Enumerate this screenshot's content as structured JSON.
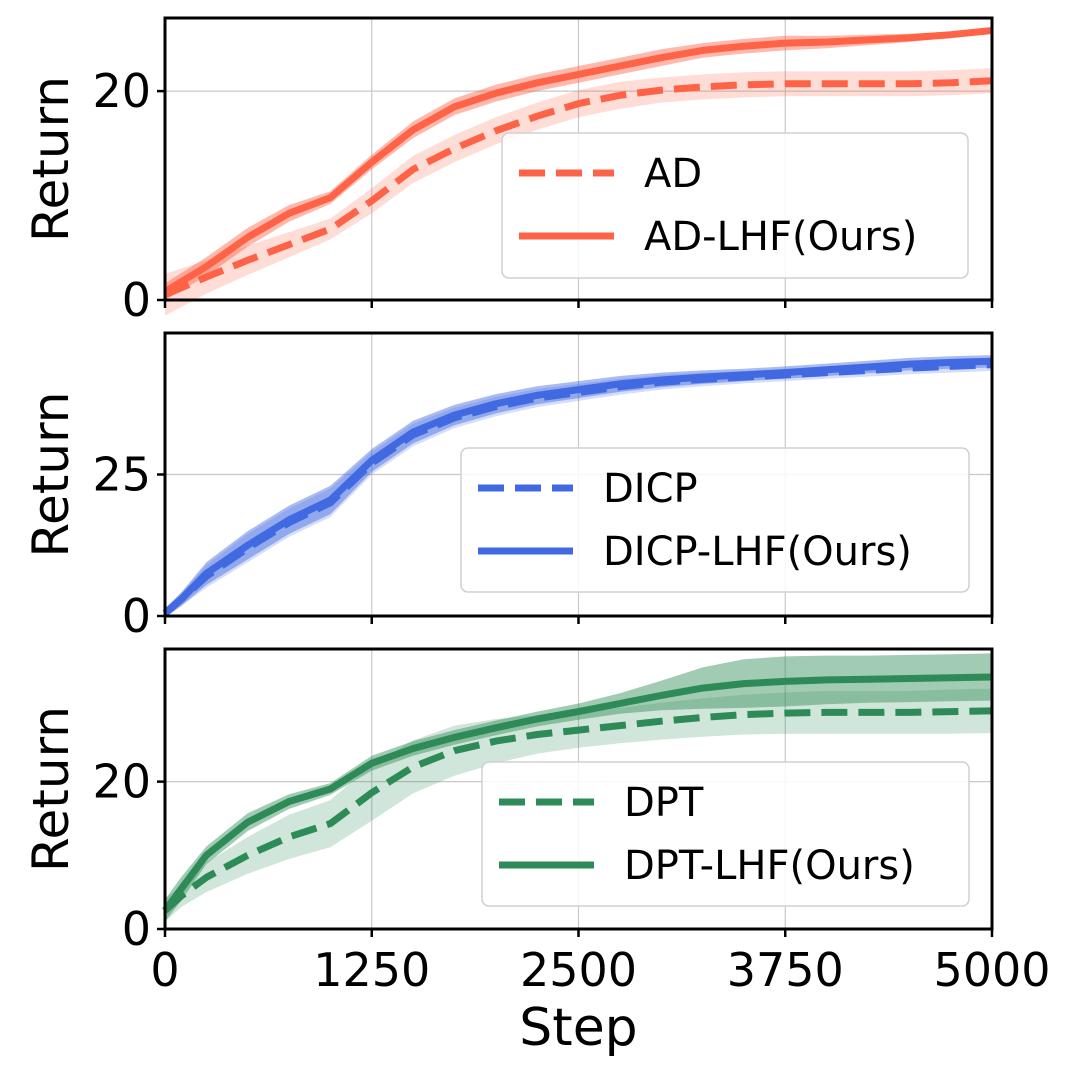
{
  "figure": {
    "xlabel": "Step",
    "ylabel": "Return"
  },
  "chart_data": [
    {
      "type": "line",
      "title": "",
      "xlabel": "",
      "ylabel": "Return",
      "xlim": [
        0,
        5000
      ],
      "ylim": [
        0,
        27
      ],
      "xticks": [
        0,
        1250,
        2500,
        3750,
        5000
      ],
      "xtick_labels": [
        "0",
        "1250",
        "2500",
        "3750",
        "5000"
      ],
      "yticks": [
        0,
        20
      ],
      "ytick_labels": [
        "0",
        "20"
      ],
      "grid": true,
      "legend_position": "lower-right",
      "color": "#ff6347",
      "x": [
        0,
        250,
        500,
        750,
        1000,
        1250,
        1500,
        1750,
        2000,
        2250,
        2500,
        2750,
        3000,
        3250,
        3500,
        3750,
        4000,
        4250,
        4500,
        4750,
        5000
      ],
      "series": [
        {
          "name": "AD",
          "style": "dashed",
          "values": [
            0.5,
            2.2,
            3.8,
            5.3,
            6.8,
            9.5,
            12.5,
            14.5,
            16.2,
            17.6,
            18.8,
            19.6,
            20.1,
            20.4,
            20.6,
            20.7,
            20.7,
            20.7,
            20.7,
            20.8,
            21.0
          ],
          "band": [
            2.0,
            1.6,
            1.4,
            1.2,
            1.0,
            1.2,
            1.3,
            1.3,
            1.3,
            1.3,
            1.3,
            1.3,
            1.2,
            1.2,
            1.2,
            1.2,
            1.2,
            1.2,
            1.2,
            1.2,
            1.2
          ]
        },
        {
          "name": "AD-LHF(Ours)",
          "style": "solid",
          "values": [
            0.8,
            3.2,
            6.0,
            8.3,
            9.8,
            13.2,
            16.3,
            18.5,
            19.8,
            20.8,
            21.6,
            22.4,
            23.2,
            23.9,
            24.3,
            24.6,
            24.7,
            24.9,
            25.1,
            25.4,
            25.8
          ],
          "band": [
            0.8,
            0.9,
            0.9,
            0.8,
            0.6,
            0.7,
            0.8,
            0.8,
            0.8,
            0.8,
            0.8,
            0.8,
            0.8,
            0.7,
            0.7,
            0.7,
            0.6,
            0.5,
            0.4,
            0.3,
            0.3
          ]
        }
      ]
    },
    {
      "type": "line",
      "title": "",
      "xlabel": "",
      "ylabel": "Return",
      "xlim": [
        0,
        5000
      ],
      "ylim": [
        0,
        50
      ],
      "xticks": [
        0,
        1250,
        2500,
        3750,
        5000
      ],
      "xtick_labels": [
        "0",
        "1250",
        "2500",
        "3750",
        "5000"
      ],
      "yticks": [
        0,
        25
      ],
      "ytick_labels": [
        "0",
        "25"
      ],
      "grid": true,
      "legend_position": "lower-right",
      "color": "#4169e1",
      "x": [
        0,
        100,
        250,
        500,
        750,
        1000,
        1250,
        1500,
        1750,
        2000,
        2250,
        2500,
        2750,
        3000,
        3250,
        3500,
        3750,
        4000,
        4250,
        4500,
        4750,
        5000
      ],
      "series": [
        {
          "name": "DICP",
          "style": "dashed",
          "values": [
            0.5,
            3,
            7,
            12,
            16.5,
            20,
            27,
            32,
            35,
            37,
            38.5,
            39.5,
            40.5,
            41.3,
            41.8,
            42.2,
            42.6,
            43,
            43.4,
            43.8,
            44.1,
            44.4
          ],
          "band": [
            0.8,
            1.2,
            2,
            2.5,
            2.5,
            2.5,
            2,
            2,
            1.8,
            1.7,
            1.6,
            1.5,
            1.4,
            1.3,
            1.2,
            1.1,
            1.1,
            1.1,
            1.1,
            1.1,
            1.1,
            1.1
          ]
        },
        {
          "name": "DICP-LHF(Ours)",
          "style": "solid",
          "values": [
            0.5,
            3,
            7.5,
            12.5,
            17,
            20.5,
            27.5,
            32.5,
            35.5,
            37.5,
            39,
            40,
            41,
            41.7,
            42.2,
            42.6,
            43,
            43.5,
            44,
            44.5,
            44.8,
            45
          ],
          "band": [
            0.8,
            1.2,
            2,
            2.5,
            2.5,
            2.5,
            2,
            2,
            1.8,
            1.7,
            1.6,
            1.5,
            1.4,
            1.3,
            1.2,
            1.1,
            1.1,
            1.1,
            1.1,
            1.1,
            1.1,
            1.1
          ]
        }
      ]
    },
    {
      "type": "line",
      "title": "",
      "xlabel": "Step",
      "ylabel": "Return",
      "xlim": [
        0,
        5000
      ],
      "ylim": [
        0,
        38
      ],
      "xticks": [
        0,
        1250,
        2500,
        3750,
        5000
      ],
      "xtick_labels": [
        "0",
        "1250",
        "2500",
        "3750",
        "5000"
      ],
      "yticks": [
        0,
        20
      ],
      "ytick_labels": [
        "0",
        "20"
      ],
      "grid": true,
      "legend_position": "lower-right",
      "color": "#2e8b57",
      "x": [
        0,
        100,
        250,
        500,
        750,
        1000,
        1250,
        1500,
        1750,
        2000,
        2250,
        2500,
        2750,
        3000,
        3250,
        3500,
        3750,
        4000,
        4250,
        4500,
        4750,
        5000
      ],
      "series": [
        {
          "name": "DPT",
          "style": "dashed",
          "values": [
            2.5,
            4.5,
            7,
            10,
            12.5,
            14.3,
            18.5,
            22,
            24.2,
            25.5,
            26.4,
            27,
            27.6,
            28.2,
            28.7,
            29.1,
            29.3,
            29.4,
            29.4,
            29.4,
            29.5,
            29.6
          ],
          "band": [
            1.5,
            1.5,
            2,
            2.5,
            3,
            3.2,
            3.8,
            3.6,
            3.4,
            3.0,
            2.6,
            2.4,
            2.4,
            2.5,
            2.6,
            2.7,
            2.8,
            2.9,
            2.9,
            2.9,
            3.0,
            3.0
          ]
        },
        {
          "name": "DPT-LHF(Ours)",
          "style": "solid",
          "values": [
            2.5,
            5.5,
            10,
            14.5,
            17.3,
            19,
            22.5,
            24.5,
            26,
            27.3,
            28.5,
            29.5,
            30.6,
            31.7,
            32.7,
            33.3,
            33.6,
            33.8,
            33.9,
            34.0,
            34.1,
            34.2
          ],
          "band": [
            1.5,
            1.6,
            1.2,
            1.2,
            1.0,
            0.8,
            1.0,
            1.0,
            1.0,
            1.0,
            1.0,
            1.1,
            1.4,
            2.0,
            2.8,
            3.3,
            3.4,
            3.3,
            3.2,
            3.2,
            3.2,
            3.2
          ]
        }
      ]
    }
  ]
}
